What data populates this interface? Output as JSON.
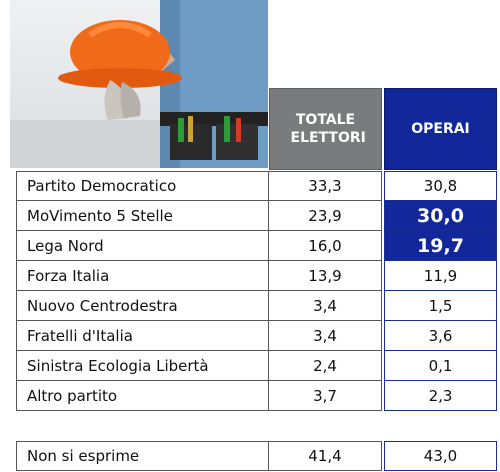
{
  "chart_data": {
    "type": "table",
    "columns": [
      "TOTALE ELETTORI",
      "OPERAI"
    ],
    "rows": [
      {
        "party": "Partito Democratico",
        "totale": "33,3",
        "operai": "30,8",
        "highlight": false
      },
      {
        "party": "MoVimento 5 Stelle",
        "totale": "23,9",
        "operai": "30,0",
        "highlight": true
      },
      {
        "party": "Lega Nord",
        "totale": "16,0",
        "operai": "19,7",
        "highlight": true
      },
      {
        "party": "Forza Italia",
        "totale": "13,9",
        "operai": "11,9",
        "highlight": false
      },
      {
        "party": "Nuovo Centrodestra",
        "totale": "3,4",
        "operai": "1,5",
        "highlight": false
      },
      {
        "party": "Fratelli d'Italia",
        "totale": "3,4",
        "operai": "3,6",
        "highlight": false
      },
      {
        "party": "Sinistra Ecologia Libertà",
        "totale": "2,4",
        "operai": "0,1",
        "highlight": false
      },
      {
        "party": "Altro partito",
        "totale": "3,7",
        "operai": "2,3",
        "highlight": false
      }
    ],
    "footer_row": {
      "party": "Non si esprime",
      "totale": "41,4",
      "operai": "43,0"
    },
    "colors": {
      "total_header": "#7a7b7d",
      "operai_accent": "#12279a"
    }
  },
  "photo": {
    "icon": "construction-worker-photo"
  }
}
